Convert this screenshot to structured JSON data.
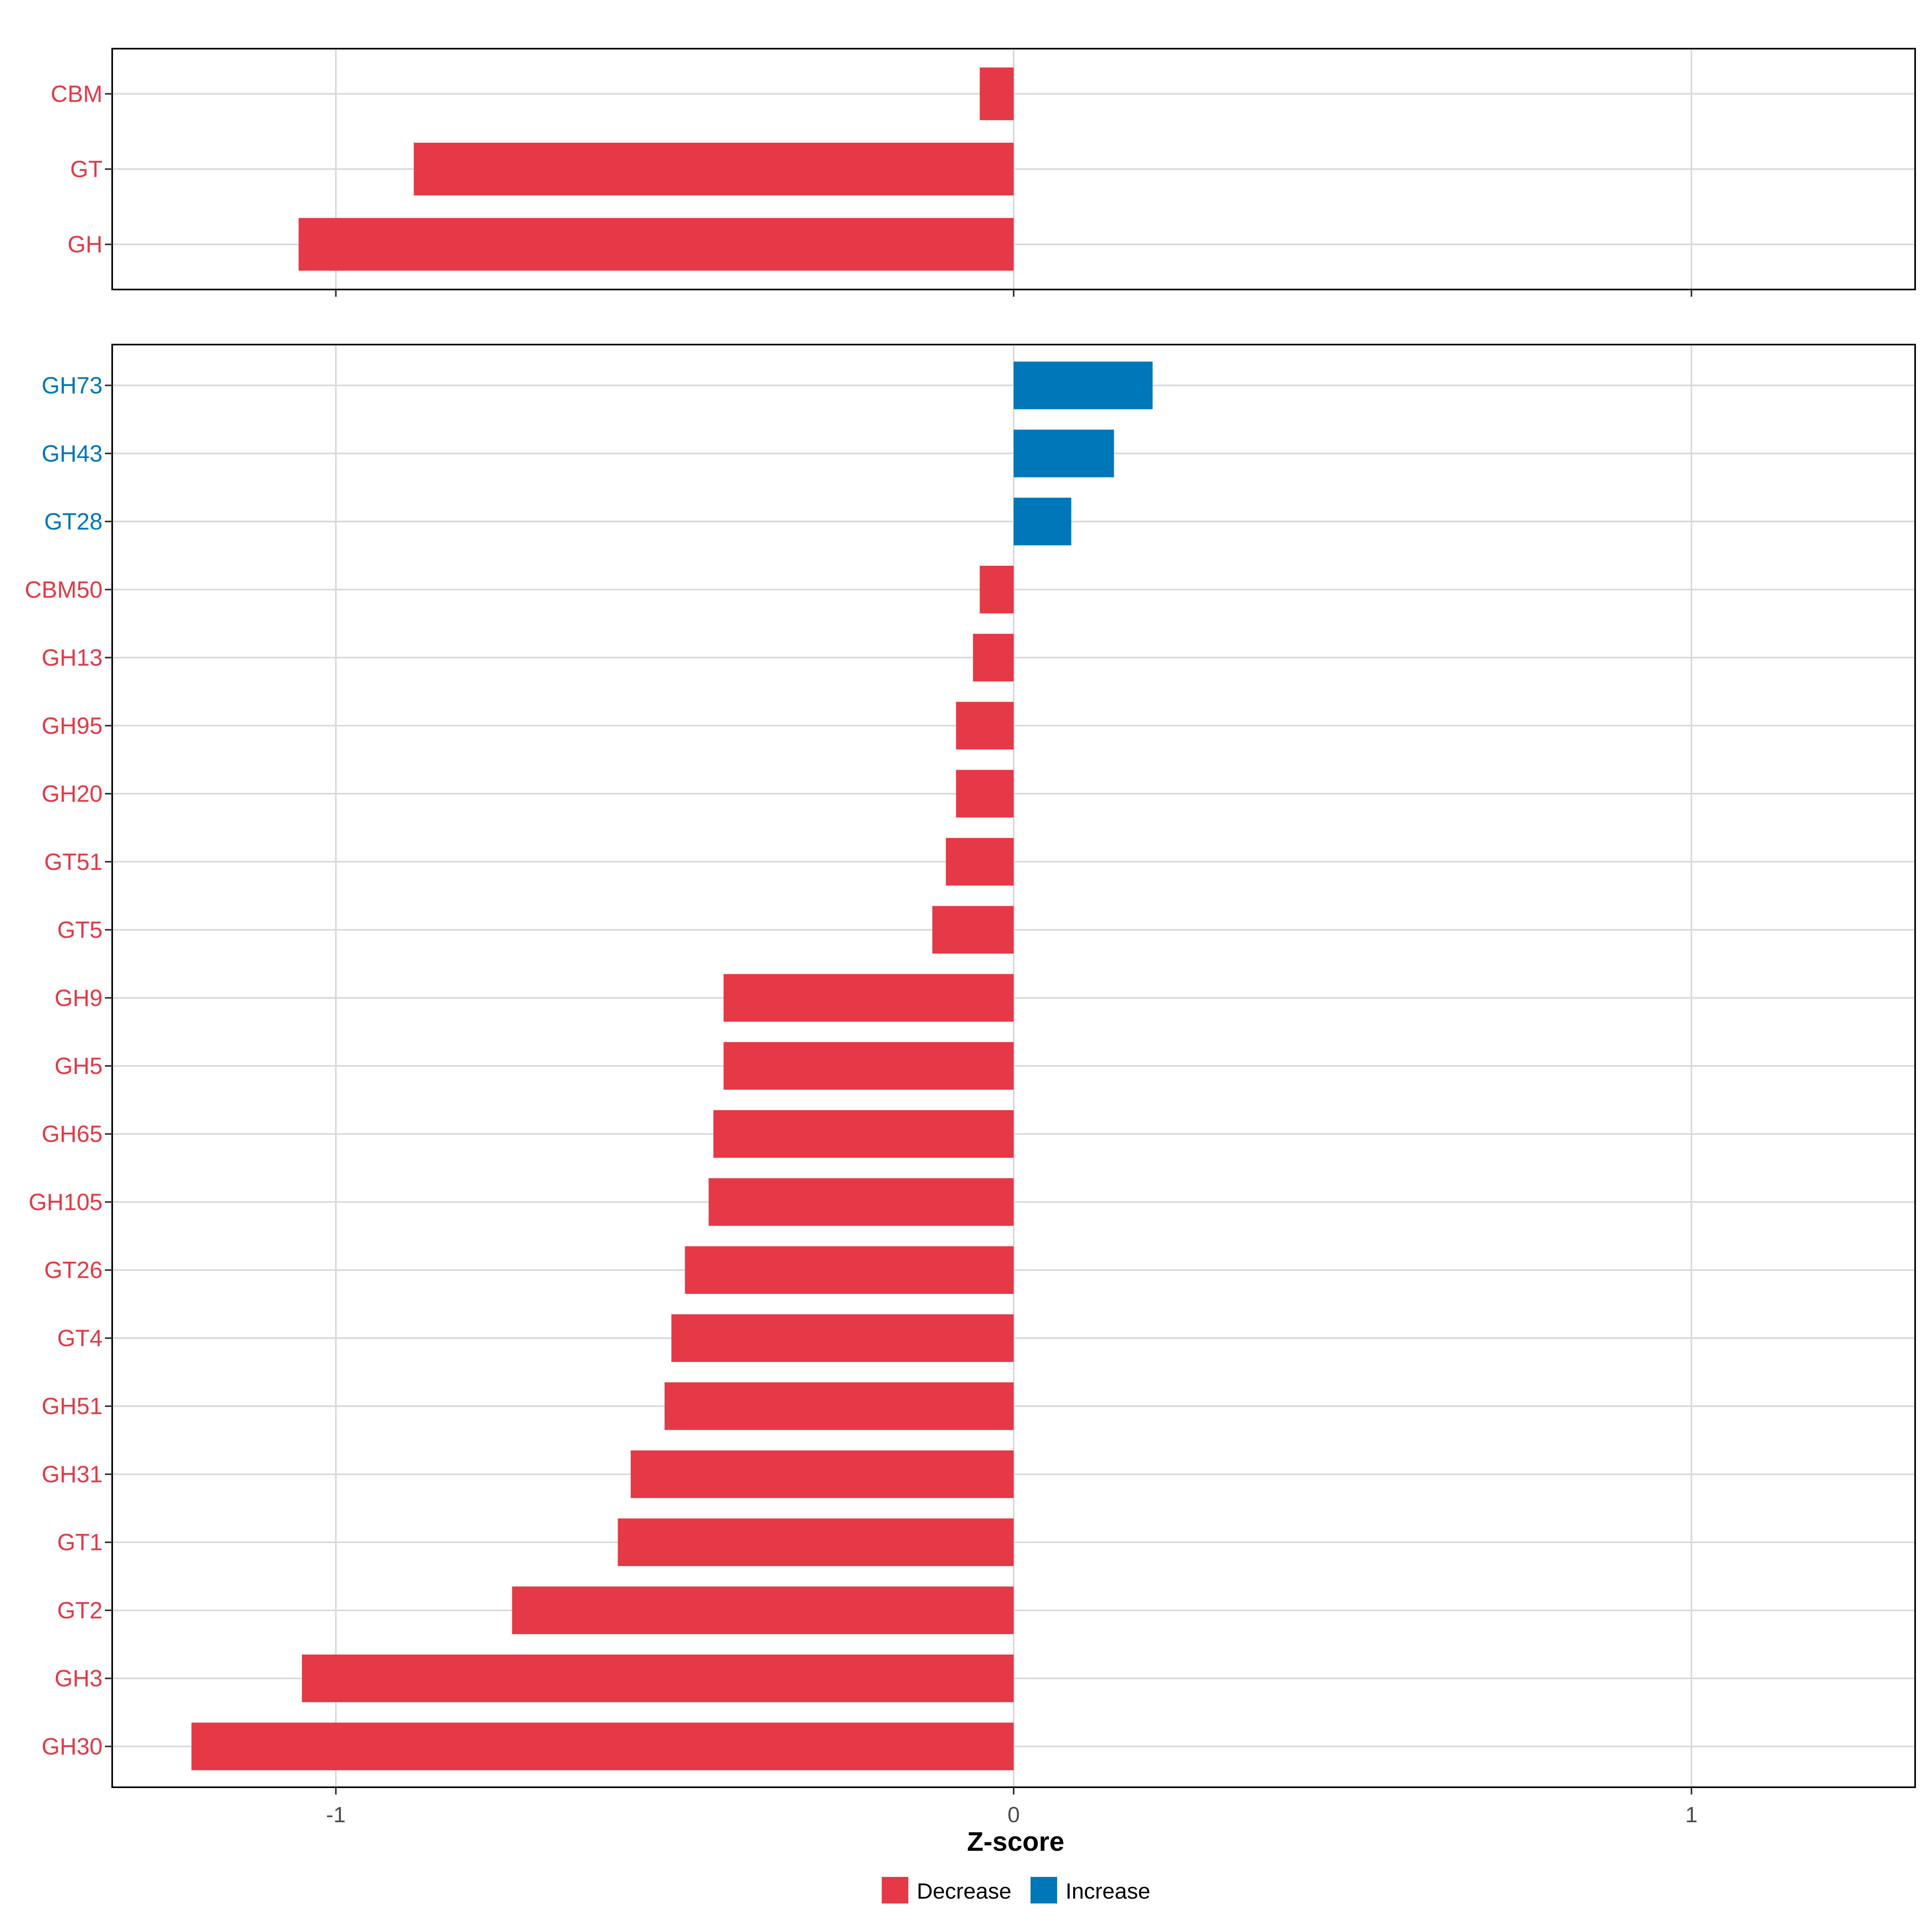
{
  "colors": {
    "decrease": "#E63946",
    "increase": "#0077B6",
    "grid": "#D9D9D9",
    "axis_text": "#4D4D4D",
    "panel_border": "#000000"
  },
  "chart_data": [
    {
      "type": "bar",
      "orientation": "horizontal",
      "panel": "top",
      "categories": [
        "CBM",
        "GT",
        "GH"
      ],
      "values": [
        -0.05,
        -0.885,
        -1.055
      ],
      "groups": [
        "Decrease",
        "Decrease",
        "Decrease"
      ],
      "xlim": [
        -1.33,
        1.33
      ],
      "xticks": [
        -1,
        0,
        1
      ],
      "show_tick_labels": false,
      "grid": true
    },
    {
      "type": "bar",
      "orientation": "horizontal",
      "panel": "bottom",
      "categories": [
        "GH73",
        "GH43",
        "GT28",
        "CBM50",
        "GH13",
        "GH95",
        "GH20",
        "GT51",
        "GT5",
        "GH9",
        "GH5",
        "GH65",
        "GH105",
        "GT26",
        "GT4",
        "GH51",
        "GH31",
        "GT1",
        "GT2",
        "GH3",
        "GH30"
      ],
      "values": [
        0.205,
        0.148,
        0.085,
        -0.05,
        -0.06,
        -0.085,
        -0.085,
        -0.1,
        -0.12,
        -0.428,
        -0.428,
        -0.443,
        -0.45,
        -0.485,
        -0.505,
        -0.515,
        -0.565,
        -0.584,
        -0.74,
        -1.05,
        -1.213
      ],
      "groups": [
        "Increase",
        "Increase",
        "Increase",
        "Decrease",
        "Decrease",
        "Decrease",
        "Decrease",
        "Decrease",
        "Decrease",
        "Decrease",
        "Decrease",
        "Decrease",
        "Decrease",
        "Decrease",
        "Decrease",
        "Decrease",
        "Decrease",
        "Decrease",
        "Decrease",
        "Decrease",
        "Decrease"
      ],
      "xlim": [
        -1.33,
        1.33
      ],
      "xticks": [
        -1,
        0,
        1
      ],
      "xtick_labels": [
        "-1",
        "0",
        "1"
      ],
      "xlabel": "Z-score",
      "show_tick_labels": true,
      "grid": true
    }
  ],
  "legend": {
    "position": "bottom",
    "items": [
      {
        "label": "Decrease",
        "color": "#E63946"
      },
      {
        "label": "Increase",
        "color": "#0077B6"
      }
    ]
  }
}
